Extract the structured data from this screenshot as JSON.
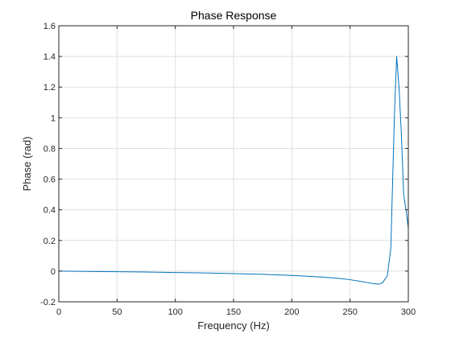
{
  "chart_data": {
    "type": "line",
    "title": "Phase Response",
    "xlabel": "Frequency (Hz)",
    "ylabel": "Phase (rad)",
    "xlim": [
      0,
      300
    ],
    "ylim": [
      -0.2,
      1.6
    ],
    "xticks": [
      0,
      50,
      100,
      150,
      200,
      250,
      300
    ],
    "yticks": [
      -0.2,
      0,
      0.2,
      0.4,
      0.6,
      0.8,
      1,
      1.2,
      1.4,
      1.6
    ],
    "xtick_labels": [
      "0",
      "50",
      "100",
      "150",
      "200",
      "250",
      "300"
    ],
    "ytick_labels": [
      "-0.2",
      "0",
      "0.2",
      "0.4",
      "0.6",
      "0.8",
      "1",
      "1.2",
      "1.4",
      "1.6"
    ],
    "grid": true,
    "colors": {
      "line": "#0072BD",
      "grid": "#dfdfdf",
      "axis": "#262626"
    },
    "series": [
      {
        "x": [
          0,
          25,
          50,
          75,
          100,
          125,
          150,
          175,
          200,
          225,
          240,
          250,
          260,
          265,
          270,
          275,
          278,
          282,
          285,
          288,
          290,
          292,
          294,
          296,
          298,
          300
        ],
        "values": [
          0.0,
          -0.002,
          -0.004,
          -0.006,
          -0.009,
          -0.012,
          -0.016,
          -0.021,
          -0.028,
          -0.038,
          -0.047,
          -0.056,
          -0.068,
          -0.075,
          -0.082,
          -0.085,
          -0.075,
          -0.03,
          0.15,
          1.0,
          1.4,
          1.2,
          0.9,
          0.5,
          0.4,
          0.28
        ]
      }
    ]
  }
}
